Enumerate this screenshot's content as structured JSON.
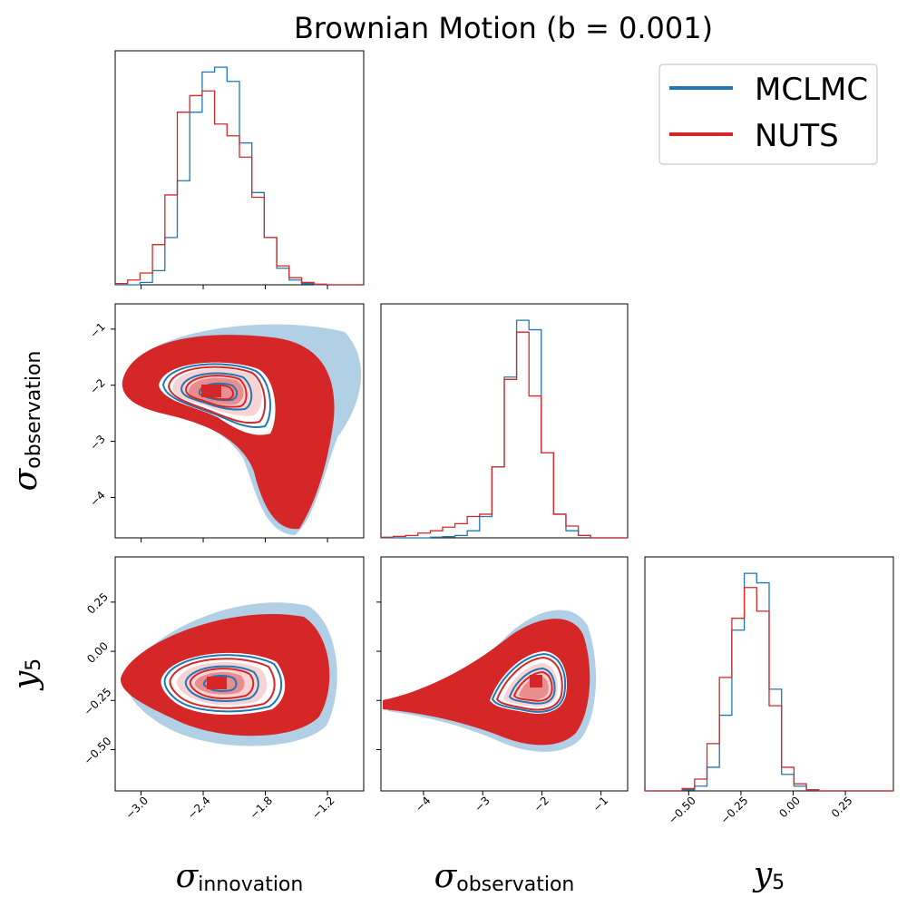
{
  "title": "Brownian Motion (b = 0.001)",
  "colors": {
    "mclmc": "#1f77b4",
    "nuts": "#d62728"
  },
  "legend": [
    {
      "label": "MCLMC",
      "color": "#1f77b4"
    },
    {
      "label": "NUTS",
      "color": "#d62728"
    }
  ],
  "axis_labels": {
    "x0": {
      "sym": "σ",
      "sub": "innovation"
    },
    "x1": {
      "sym": "σ",
      "sub": "observation"
    },
    "x2": {
      "sym": "y",
      "sub": "5"
    },
    "y1": {
      "sym": "σ",
      "sub": "observation"
    },
    "y2": {
      "sym": "y",
      "sub": "5"
    }
  },
  "chart_data": {
    "type": "corner",
    "legend_location": "top-right",
    "variables": [
      {
        "name": "σ_innovation",
        "range": [
          -3.25,
          -0.85
        ],
        "ticks": [
          -3.0,
          -2.4,
          -1.8,
          -1.2
        ],
        "tick_labels": [
          "−3.0",
          "−2.4",
          "−1.8",
          "−1.2"
        ]
      },
      {
        "name": "σ_observation",
        "range": [
          -4.72,
          -0.55
        ],
        "ticks": [
          -4,
          -3,
          -2,
          -1
        ],
        "tick_labels": [
          "−4",
          "−3",
          "−2",
          "−1"
        ]
      },
      {
        "name": "y_5",
        "range": [
          -0.71,
          0.48
        ],
        "ticks": [
          -0.5,
          -0.25,
          0.0,
          0.25
        ],
        "tick_labels": [
          "−0.50",
          "−0.25",
          "0.00",
          "0.25"
        ]
      }
    ],
    "marginals": [
      {
        "variable": "σ_innovation",
        "bin_edges": [
          -3.25,
          -3.13,
          -3.01,
          -2.89,
          -2.77,
          -2.65,
          -2.53,
          -2.41,
          -2.29,
          -2.17,
          -2.05,
          -1.93,
          -1.81,
          -1.69,
          -1.57,
          -1.45,
          -1.33,
          -1.21,
          -1.09,
          -0.97,
          -0.85
        ],
        "series": [
          {
            "name": "MCLMC",
            "values": [
              0,
              0,
              0.01,
              0.06,
              0.2,
              0.44,
              0.73,
              0.9,
              0.92,
              0.86,
              0.6,
              0.39,
              0.2,
              0.07,
              0.02,
              0.005,
              0,
              0,
              0,
              0
            ]
          },
          {
            "name": "NUTS",
            "values": [
              0.005,
              0.02,
              0.05,
              0.17,
              0.38,
              0.73,
              0.8,
              0.82,
              0.68,
              0.63,
              0.54,
              0.37,
              0.2,
              0.08,
              0.03,
              0.01,
              0.003,
              0,
              0,
              0
            ]
          }
        ]
      },
      {
        "variable": "σ_observation",
        "bin_edges": [
          -4.72,
          -4.512,
          -4.303,
          -4.095,
          -3.886,
          -3.678,
          -3.469,
          -3.261,
          -3.052,
          -2.844,
          -2.635,
          -2.427,
          -2.218,
          -2.01,
          -1.801,
          -1.593,
          -1.384,
          -1.176,
          -0.967,
          -0.759,
          -0.55
        ],
        "series": [
          {
            "name": "MCLMC",
            "values": [
              0,
              0,
              0,
              0,
              0.003,
              0.005,
              0.01,
              0.03,
              0.09,
              0.3,
              0.68,
              0.92,
              0.88,
              0.36,
              0.1,
              0.03,
              0.01,
              0,
              0,
              0
            ]
          },
          {
            "name": "NUTS",
            "values": [
              0.003,
              0.006,
              0.01,
              0.02,
              0.03,
              0.045,
              0.06,
              0.09,
              0.1,
              0.3,
              0.67,
              0.87,
              0.6,
              0.36,
              0.1,
              0.05,
              0.01,
              0,
              0,
              0
            ]
          }
        ]
      },
      {
        "variable": "y_5",
        "bin_edges": [
          -0.71,
          -0.6505,
          -0.591,
          -0.5315,
          -0.472,
          -0.4125,
          -0.353,
          -0.2935,
          -0.234,
          -0.1745,
          -0.115,
          -0.0555,
          0.004,
          0.0635,
          0.123,
          0.1825,
          0.242,
          0.3015,
          0.361,
          0.4205,
          0.48
        ],
        "series": [
          {
            "name": "MCLMC",
            "values": [
              0,
              0,
              0,
              0.005,
              0.02,
              0.1,
              0.32,
              0.68,
              0.92,
              0.88,
              0.43,
              0.07,
              0.02,
              0.003,
              0,
              0,
              0,
              0,
              0,
              0
            ]
          },
          {
            "name": "NUTS",
            "values": [
              0,
              0,
              0,
              0.01,
              0.05,
              0.2,
              0.48,
              0.73,
              0.86,
              0.76,
              0.36,
              0.1,
              0.03,
              0.005,
              0,
              0,
              0,
              0,
              0,
              0
            ]
          }
        ]
      }
    ],
    "pairs": [
      {
        "x": "σ_innovation",
        "y": "σ_observation",
        "mode": [
          -2.35,
          -2.15
        ]
      },
      {
        "x": "σ_innovation",
        "y": "y_5",
        "mode": [
          -2.35,
          -0.17
        ]
      },
      {
        "x": "σ_observation",
        "y": "y_5",
        "mode": [
          -2.1,
          -0.15
        ]
      }
    ]
  }
}
